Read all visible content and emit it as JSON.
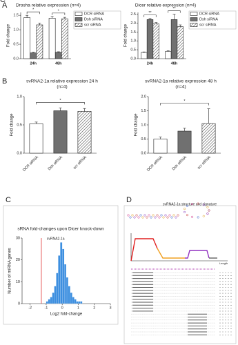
{
  "chart_data": [
    {
      "type": "bar",
      "panel": "A",
      "title": "Drosha relative expression (n=4)",
      "ylabel": "Fold  change",
      "categories": [
        "24h",
        "48h"
      ],
      "series": [
        {
          "name": "DCR siRNA",
          "color": "#ffffff",
          "values": [
            1.42,
            1.4
          ],
          "errors": [
            0.08,
            0.06
          ]
        },
        {
          "name": "Dsh siRNA",
          "color": "#707070",
          "values": [
            0.2,
            0.22
          ],
          "errors": [
            0.02,
            0.02
          ]
        },
        {
          "name": "scr siRNA",
          "color": "#555555",
          "pattern": "hatch",
          "values": [
            1.17,
            1.38
          ],
          "errors": [
            0.06,
            0.05
          ]
        }
      ],
      "ylim": [
        0,
        1.6
      ],
      "yticks": [
        {
          "value": 0,
          "label": "0.0"
        },
        0.5,
        {
          "value": 1,
          "label": "1.0"
        },
        1.5
      ],
      "annotations": [
        "*",
        "*"
      ]
    },
    {
      "type": "bar",
      "panel": "",
      "title": "Dicer relative expression (n=4)",
      "ylabel": "Fold  change",
      "categories": [
        "24h",
        "48h"
      ],
      "series": [
        {
          "name": "DCR siRNA",
          "color": "#ffffff",
          "values": [
            0.35,
            0.4
          ],
          "errors": [
            0.03,
            0.04
          ]
        },
        {
          "name": "Dsh siRNA",
          "color": "#707070",
          "values": [
            2.2,
            2.2
          ],
          "errors": [
            0.06,
            0.3
          ]
        },
        {
          "name": "scr siRNA",
          "color": "#555555",
          "pattern": "hatch",
          "values": [
            1.95,
            1.8
          ],
          "errors": [
            0.08,
            0.1
          ]
        }
      ],
      "ylim": [
        0,
        2.6
      ],
      "yticks": [
        {
          "value": 0,
          "label": "0.0"
        },
        0.5,
        {
          "value": 1,
          "label": "1.0"
        },
        1.5,
        {
          "value": 2,
          "label": "2.0"
        },
        2.5
      ],
      "annotations": [
        "**",
        "**"
      ]
    },
    {
      "type": "column",
      "panel": "B",
      "title": "svRNA2-1a relative expression 24 h",
      "subtitle": "(n=4)",
      "ylabel": "Fold  change",
      "categories": [
        "DCR siRNA",
        "Dsh siRNA",
        "scr siRNA"
      ],
      "values": [
        0.52,
        0.75,
        0.74
      ],
      "errors": [
        0.03,
        0.05,
        0.05
      ],
      "colors": [
        "#ffffff",
        "#707070",
        "#555555"
      ],
      "hatched": [
        false,
        false,
        true
      ],
      "ylim": [
        0,
        1.0
      ],
      "yticks": [
        {
          "value": 0,
          "label": "0.0"
        },
        0.5,
        {
          "value": 1,
          "label": "1.0"
        }
      ],
      "annotations": [
        "*"
      ]
    },
    {
      "type": "column",
      "panel": "",
      "title": "svRNA2-1a relative expression 48 h",
      "subtitle": "(n=4)",
      "ylabel": "Fold  change",
      "categories": [
        "DCR siRNA",
        "Dsh siRNA",
        "scr siRNA"
      ],
      "values": [
        0.5,
        0.78,
        1.05
      ],
      "errors": [
        0.07,
        0.1,
        0.52
      ],
      "colors": [
        "#ffffff",
        "#707070",
        "#555555"
      ],
      "hatched": [
        false,
        false,
        true
      ],
      "ylim": [
        0,
        2.0
      ],
      "yticks": [
        {
          "value": 0,
          "label": "0.0"
        },
        0.5,
        {
          "value": 1,
          "label": "1.0"
        },
        1.5,
        {
          "value": 2,
          "label": "2.0"
        }
      ],
      "annotations": [
        "*"
      ]
    },
    {
      "type": "histogram",
      "panel": "C",
      "title": "sRNA fold-changes upon Dicer knock-down",
      "xlabel": "Log2 fold-change",
      "ylabel": "Number of miRNA genes",
      "color": "#3d8fe0",
      "bins": [
        -1.0,
        -0.875,
        -0.75,
        -0.625,
        -0.5,
        -0.375,
        -0.25,
        -0.125,
        0,
        0.125,
        0.25,
        0.375,
        0.5,
        0.625,
        0.75,
        0.875,
        1.0,
        1.125,
        1.25
      ],
      "values": [
        1,
        2,
        3,
        5,
        8,
        14,
        22,
        28,
        25,
        18,
        12,
        8,
        5,
        3,
        2,
        1,
        1,
        1
      ],
      "xlim": [
        -2.5,
        3
      ],
      "xticks": [
        -2,
        -1,
        0,
        1,
        2,
        3
      ],
      "ylim": [
        0,
        30
      ],
      "yticks": [
        0,
        10,
        20,
        30
      ],
      "marker": -1.3,
      "marker_label": "svRNA2-1a",
      "marker_color": "#e03030"
    }
  ],
  "panel_d": {
    "panel": "D",
    "title": "svRNA2-1a structure and signature",
    "axis_label": "Length"
  }
}
